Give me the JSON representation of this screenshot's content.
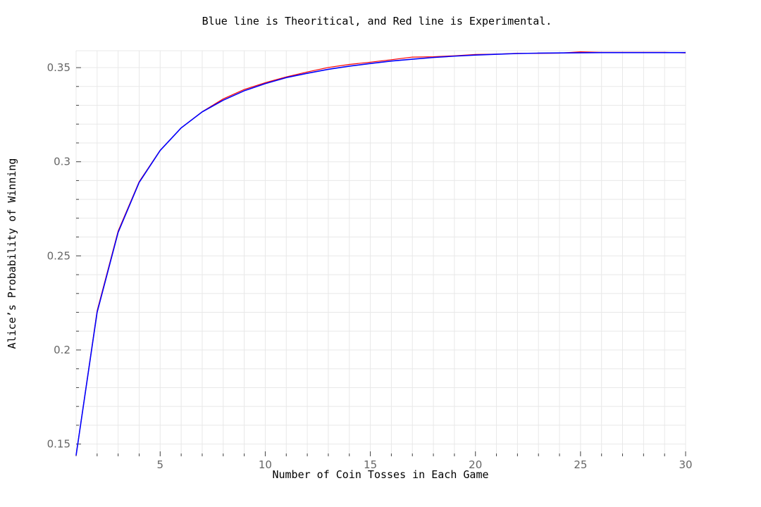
{
  "chart_data": {
    "type": "line",
    "title": "Blue line is Theoritical, and Red line is Experimental.",
    "xlabel": "Number of Coin Tosses in Each Game",
    "ylabel": "Alice’s Probability of Winning",
    "xlim": [
      1,
      30
    ],
    "ylim": [
      0.1435,
      0.359
    ],
    "x_ticks": [
      5,
      10,
      15,
      20,
      25,
      30
    ],
    "x_tick_labels": [
      "5",
      "10",
      "15",
      "20",
      "25",
      "30"
    ],
    "y_ticks": [
      0.15,
      0.2,
      0.25,
      0.3,
      0.35
    ],
    "y_tick_labels": [
      "0.15",
      "0.2",
      "0.25",
      "0.3",
      "0.35"
    ],
    "grid": true,
    "x": [
      1,
      2,
      3,
      4,
      5,
      6,
      7,
      8,
      9,
      10,
      11,
      12,
      13,
      14,
      15,
      16,
      17,
      18,
      19,
      20,
      21,
      22,
      23,
      24,
      25,
      26,
      27,
      28,
      29,
      30
    ],
    "series": [
      {
        "color": "#ff0000",
        "values": [
          0.144,
          0.2208,
          0.2632,
          0.2894,
          0.3061,
          0.318,
          0.3266,
          0.3334,
          0.3384,
          0.342,
          0.3451,
          0.3477,
          0.3501,
          0.3517,
          0.3529,
          0.3542,
          0.3556,
          0.3558,
          0.3563,
          0.357,
          0.3572,
          0.3576,
          0.3576,
          0.3577,
          0.3584,
          0.3581,
          0.3581,
          0.3581,
          0.3581,
          0.3578
        ]
      },
      {
        "color": "#0000ff",
        "values": [
          0.144,
          0.22,
          0.2625,
          0.289,
          0.306,
          0.318,
          0.3265,
          0.3327,
          0.3377,
          0.3415,
          0.3447,
          0.347,
          0.3491,
          0.3508,
          0.3522,
          0.3535,
          0.3545,
          0.3554,
          0.3561,
          0.3567,
          0.3571,
          0.3575,
          0.3577,
          0.3578,
          0.3579,
          0.358,
          0.358,
          0.358,
          0.358,
          0.358
        ]
      }
    ]
  }
}
